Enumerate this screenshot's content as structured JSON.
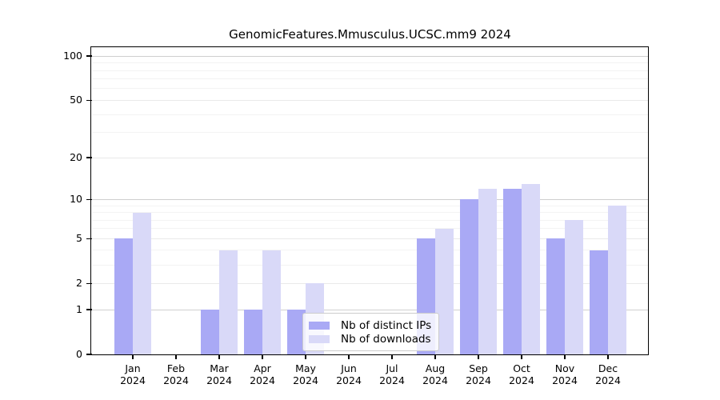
{
  "chart_data": {
    "type": "bar",
    "title": "GenomicFeatures.Mmusculus.UCSC.mm9 2024",
    "categories": [
      "Jan",
      "Feb",
      "Mar",
      "Apr",
      "May",
      "Jun",
      "Jul",
      "Aug",
      "Sep",
      "Oct",
      "Nov",
      "Dec"
    ],
    "category_sublabel": "2024",
    "series": [
      {
        "name": "Nb of distinct IPs",
        "color": "#a9a9f5",
        "values": [
          5,
          0,
          1,
          1,
          1,
          0,
          0,
          5,
          10,
          12,
          5,
          4
        ]
      },
      {
        "name": "Nb of downloads",
        "color": "#d9d9f8",
        "values": [
          8,
          0,
          4,
          4,
          2,
          0,
          0,
          6,
          12,
          13,
          7,
          9
        ]
      }
    ],
    "y_axis": {
      "scale": "log10(1+y)",
      "ticks": [
        0,
        1,
        2,
        5,
        10,
        20,
        50,
        100
      ],
      "range": [
        0,
        113
      ]
    },
    "x_axis": {
      "unit": "month"
    },
    "legend": {
      "position": "bottom-center",
      "framed": true
    },
    "grid": "on",
    "colors": {
      "grid_major": "#cfcfcf",
      "grid_mid": "#e9e9e9",
      "grid_minor": "#f3f3f3",
      "axis": "#000000"
    }
  }
}
